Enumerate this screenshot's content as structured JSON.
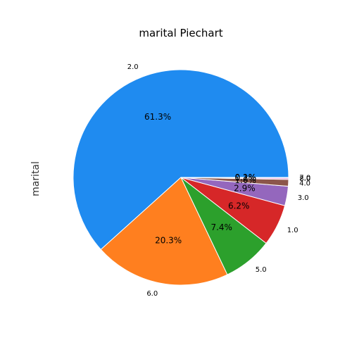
{
  "chart_data": {
    "type": "pie",
    "title": "marital Piechart",
    "ylabel": "marital",
    "slices": [
      {
        "label": "2.0",
        "pct": 61.3,
        "pct_label": "61.3%",
        "color": "#1f8bf0"
      },
      {
        "label": "6.0",
        "pct": 20.3,
        "pct_label": "20.3%",
        "color": "#ff7f1f"
      },
      {
        "label": "5.0",
        "pct": 7.4,
        "pct_label": "7.4%",
        "color": "#2ca02c"
      },
      {
        "label": "1.0",
        "pct": 6.2,
        "pct_label": "6.2%",
        "color": "#d62728"
      },
      {
        "label": "3.0",
        "pct": 2.9,
        "pct_label": "2.9%",
        "color": "#9467bd"
      },
      {
        "label": "4.0",
        "pct": 1.0,
        "pct_label": "1.0%",
        "color": "#8c564b"
      },
      {
        "label": "8.0",
        "pct": 0.2,
        "pct_label": "0.2%",
        "color": "#e377c2"
      },
      {
        "label": "7.0",
        "pct": 0.1,
        "pct_label": "0.1%",
        "color": "#7f7f7f"
      }
    ],
    "start_angle_deg": 0,
    "direction": "counterclockwise"
  }
}
